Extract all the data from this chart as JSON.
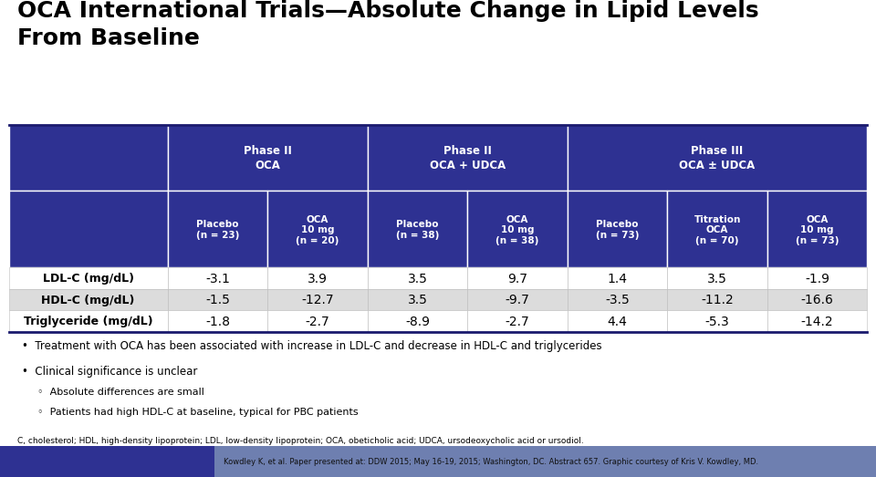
{
  "title": "OCA International Trials—Absolute Change in Lipid Levels\nFrom Baseline",
  "title_fontsize": 18,
  "title_color": "#000000",
  "bg_color": "#ffffff",
  "header_dark_color": "#2E3192",
  "row_colors": [
    "#ffffff",
    "#dcdcdc",
    "#ffffff"
  ],
  "table_border_color": "#1a1a6e",
  "phase_headers": [
    "Phase II\nOCA",
    "Phase II\nOCA + UDCA",
    "Phase III\nOCA ± UDCA"
  ],
  "col_headers": [
    "Placebo\n(n = 23)",
    "OCA\n10 mg\n(n = 20)",
    "Placebo\n(n = 38)",
    "OCA\n10 mg\n(n = 38)",
    "Placebo\n(n = 73)",
    "Titration\nOCA\n(n = 70)",
    "OCA\n10 mg\n(n = 73)"
  ],
  "row_labels": [
    "LDL-C (mg/dL)",
    "HDL-C (mg/dL)",
    "Triglyceride (mg/dL)"
  ],
  "data": [
    [
      "-3.1",
      "3.9",
      "3.5",
      "9.7",
      "1.4",
      "3.5",
      "-1.9"
    ],
    [
      "-1.5",
      "-12.7",
      "3.5",
      "-9.7",
      "-3.5",
      "-11.2",
      "-16.6"
    ],
    [
      "-1.8",
      "-2.7",
      "-8.9",
      "-2.7",
      "4.4",
      "-5.3",
      "-14.2"
    ]
  ],
  "bullet_points": [
    "Treatment with OCA has been associated with increase in LDL-C and decrease in HDL-C and triglycerides",
    "Clinical significance is unclear"
  ],
  "sub_bullets": [
    "Absolute differences are small",
    "Patients had high HDL-C at baseline, typical for PBC patients"
  ],
  "footnote": "C, cholesterol; HDL, high-density lipoprotein; LDL, low-density lipoprotein; OCA, obeticholic acid; UDCA, ursodeoxycholic acid or ursodiol.",
  "citation": "Kowdley K, et al. Paper presented at: DDW 2015; May 16-19, 2015; Washington, DC. Abstract 657. Graphic courtesy of Kris V. Kowdley, MD.",
  "footer_left_color": "#2E3192",
  "footer_right_color": "#6E7FB0"
}
